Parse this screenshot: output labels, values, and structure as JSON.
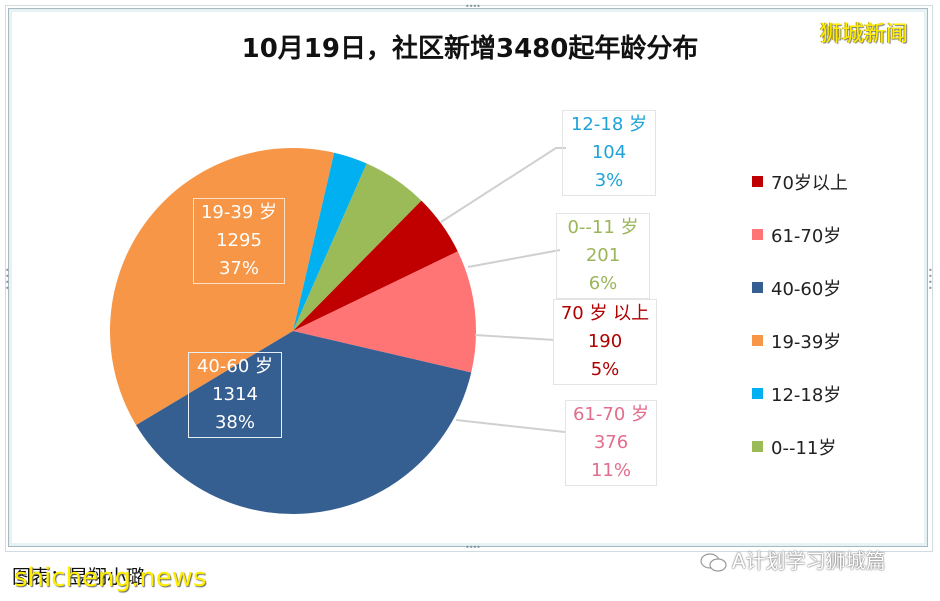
{
  "chart_data": {
    "type": "pie",
    "title": "10月19日，社区新增3480起年龄分布",
    "total": 3480,
    "start_angle_deg": -77,
    "slices": [
      {
        "label": "19-39岁",
        "value": 1295,
        "percent": "37%",
        "color": "#F79646",
        "label_color": "#ffffff"
      },
      {
        "label": "12-18岁",
        "value": 104,
        "percent": "3%",
        "color": "#00B0F0",
        "label_color": "#1fa3d8"
      },
      {
        "label": "0--11岁",
        "value": 201,
        "percent": "6%",
        "color": "#9BBB59",
        "label_color": "#9bb55a"
      },
      {
        "label": "70岁以上",
        "value": 190,
        "percent": "5%",
        "color": "#C00000",
        "label_color": "#b00000"
      },
      {
        "label": "61-70岁",
        "value": 376,
        "percent": "11%",
        "color": "#FF7575",
        "label_color": "#e26d8c"
      },
      {
        "label": "40-60岁",
        "value": 1314,
        "percent": "38%",
        "color": "#355E91",
        "label_color": "#ffffff"
      }
    ],
    "legend": {
      "position": "right",
      "entries": [
        "70岁以上",
        "61-70岁",
        "40-60岁",
        "19-39岁",
        "12-18岁",
        "0--11岁"
      ]
    }
  },
  "header": {
    "title": "10月19日，社区新增3480起年龄分布",
    "watermark": "狮城新闻"
  },
  "data_labels": {
    "s19_39": {
      "name": "19-39 岁",
      "value": "1295",
      "pct": "37%"
    },
    "s40_60": {
      "name": "40-60 岁",
      "value": "1314",
      "pct": "38%"
    },
    "s12_18": {
      "name": "12-18 岁",
      "value": "104",
      "pct": "3%"
    },
    "s0_11": {
      "name": "0--11 岁",
      "value": "201",
      "pct": "6%"
    },
    "s70": {
      "name": "70 岁 以上",
      "value": "190",
      "pct": "5%"
    },
    "s61_70": {
      "name": "61-70 岁",
      "value": "376",
      "pct": "11%"
    }
  },
  "legend": {
    "items": [
      {
        "label": "70岁以上",
        "color": "#C00000"
      },
      {
        "label": "61-70岁",
        "color": "#FF7575"
      },
      {
        "label": "40-60岁",
        "color": "#355E91"
      },
      {
        "label": "19-39岁",
        "color": "#F79646"
      },
      {
        "label": "12-18岁",
        "color": "#00B0F0"
      },
      {
        "label": "0--11岁",
        "color": "#9BBB59"
      }
    ]
  },
  "footer": {
    "source": "图表：昱翔小璐",
    "watermark": "shicheng.news",
    "account": "A计划学习狮城篇"
  }
}
